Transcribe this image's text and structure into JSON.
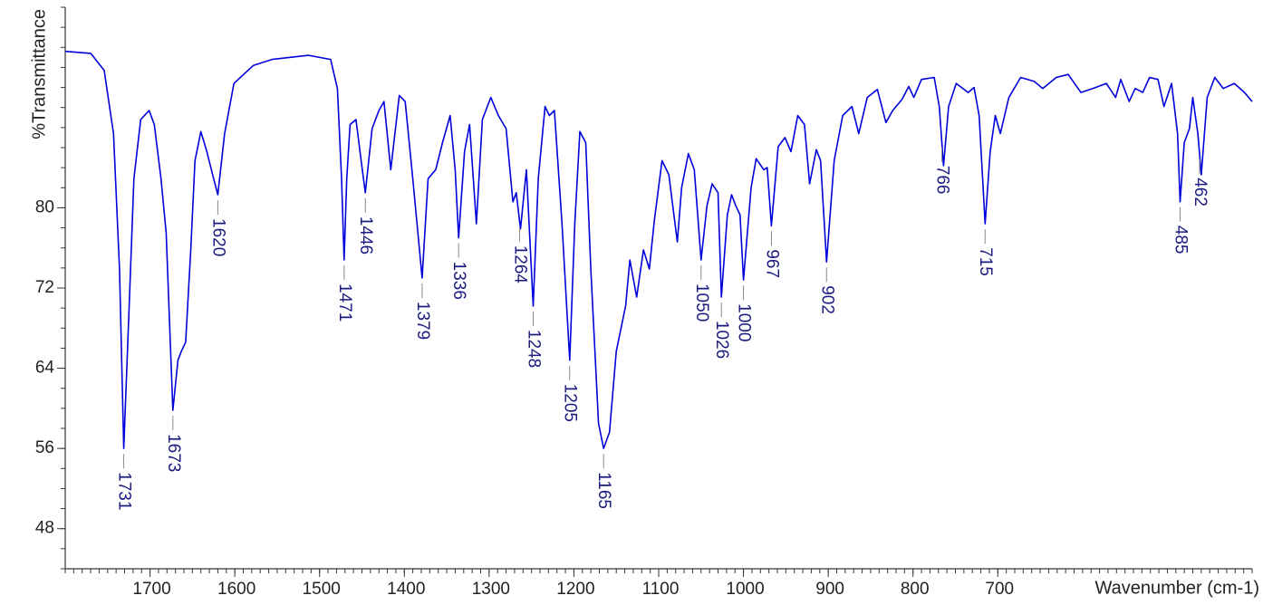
{
  "chart_data": {
    "type": "line",
    "y_label": "%Transmittance",
    "x_label": "Wavenumber (cm-1)",
    "xlim": [
      1800,
      400
    ],
    "ylim": [
      44,
      100
    ],
    "xticks": [
      1700,
      1600,
      1500,
      1400,
      1300,
      1200,
      1100,
      1000,
      900,
      800,
      700
    ],
    "yticks": [
      48,
      56,
      64,
      72,
      80
    ],
    "minor_tick_step": {
      "x": 10,
      "y": 2
    },
    "x": [
      1800,
      1770,
      1754,
      1743,
      1736,
      1731,
      1725,
      1719,
      1711,
      1701,
      1695,
      1687,
      1681,
      1673,
      1667,
      1663,
      1658,
      1652,
      1647,
      1640,
      1633,
      1625,
      1620,
      1612,
      1601,
      1578,
      1556,
      1513,
      1487,
      1479,
      1474,
      1471,
      1468,
      1464,
      1457,
      1451,
      1446,
      1438,
      1430,
      1424,
      1416,
      1406,
      1399,
      1390,
      1379,
      1372,
      1363,
      1355,
      1346,
      1340,
      1336,
      1329,
      1323,
      1315,
      1308,
      1298,
      1289,
      1280,
      1272,
      1268,
      1263,
      1256,
      1248,
      1242,
      1234,
      1229,
      1223,
      1214,
      1205,
      1199,
      1193,
      1186,
      1180,
      1171,
      1165,
      1158,
      1150,
      1139,
      1134,
      1126,
      1118,
      1111,
      1105,
      1096,
      1088,
      1078,
      1073,
      1065,
      1058,
      1050,
      1043,
      1037,
      1030,
      1026,
      1019,
      1014,
      1009,
      1004,
      1000,
      991,
      985,
      976,
      972,
      967,
      959,
      951,
      944,
      936,
      928,
      922,
      914,
      909,
      902,
      893,
      883,
      872,
      864,
      854,
      842,
      832,
      824,
      813,
      805,
      799,
      790,
      775,
      769,
      764,
      758,
      749,
      735,
      728,
      722,
      715,
      709,
      703,
      697,
      687,
      673,
      657,
      647,
      631,
      617,
      602,
      588,
      572,
      561,
      555,
      545,
      538,
      529,
      521,
      511,
      504,
      495,
      488,
      485,
      480,
      474,
      470,
      464,
      460,
      453,
      444,
      434,
      421,
      409,
      400
    ],
    "series": [
      {
        "name": "spectrum",
        "color": "#0000dd",
        "values": [
          95.6,
          95.4,
          93.7,
          87.4,
          73.9,
          56.0,
          69.3,
          82.9,
          88.8,
          89.7,
          88.3,
          82.9,
          77.5,
          59.8,
          64.8,
          65.7,
          66.6,
          75.7,
          84.7,
          87.6,
          85.6,
          82.9,
          81.3,
          87.4,
          92.4,
          94.2,
          94.8,
          95.2,
          94.8,
          91.9,
          82.9,
          74.8,
          82.9,
          88.3,
          88.8,
          84.7,
          81.5,
          87.9,
          89.7,
          90.6,
          83.8,
          91.2,
          90.6,
          82.9,
          73.0,
          82.9,
          83.8,
          86.5,
          89.2,
          83.8,
          77.0,
          85.6,
          88.3,
          78.4,
          88.8,
          91.0,
          89.2,
          87.9,
          80.6,
          81.5,
          77.9,
          83.8,
          70.2,
          82.9,
          90.1,
          89.2,
          89.7,
          78.4,
          64.8,
          78.4,
          87.6,
          86.5,
          73.9,
          58.5,
          56.0,
          57.6,
          65.7,
          70.2,
          74.8,
          71.1,
          75.8,
          73.9,
          78.8,
          84.7,
          83.3,
          76.6,
          82.0,
          85.4,
          83.8,
          74.8,
          80.2,
          82.4,
          81.5,
          71.1,
          79.3,
          81.3,
          80.2,
          79.3,
          72.8,
          82.0,
          84.9,
          83.8,
          84.0,
          78.2,
          86.1,
          87.0,
          85.6,
          89.2,
          88.3,
          82.4,
          85.8,
          84.7,
          74.6,
          84.7,
          89.2,
          90.1,
          87.4,
          91.0,
          91.8,
          88.5,
          89.7,
          90.8,
          92.1,
          91.0,
          92.8,
          93.0,
          90.1,
          84.2,
          90.1,
          92.4,
          91.5,
          92.0,
          89.2,
          78.4,
          85.6,
          89.2,
          87.4,
          91.0,
          93.0,
          92.6,
          91.9,
          93.0,
          93.3,
          91.5,
          91.9,
          92.4,
          91.0,
          92.8,
          90.6,
          91.9,
          91.5,
          93.0,
          92.8,
          90.1,
          92.4,
          87.4,
          80.6,
          86.5,
          87.9,
          91.0,
          87.4,
          83.3,
          91.0,
          93.0,
          91.9,
          92.4,
          91.5,
          90.6
        ]
      }
    ],
    "peaks": [
      1731,
      1673,
      1620,
      1471,
      1446,
      1379,
      1336,
      1264,
      1248,
      1205,
      1165,
      1050,
      1026,
      1000,
      967,
      902,
      766,
      715,
      485,
      462
    ],
    "peak_color": "#1a1a80"
  }
}
